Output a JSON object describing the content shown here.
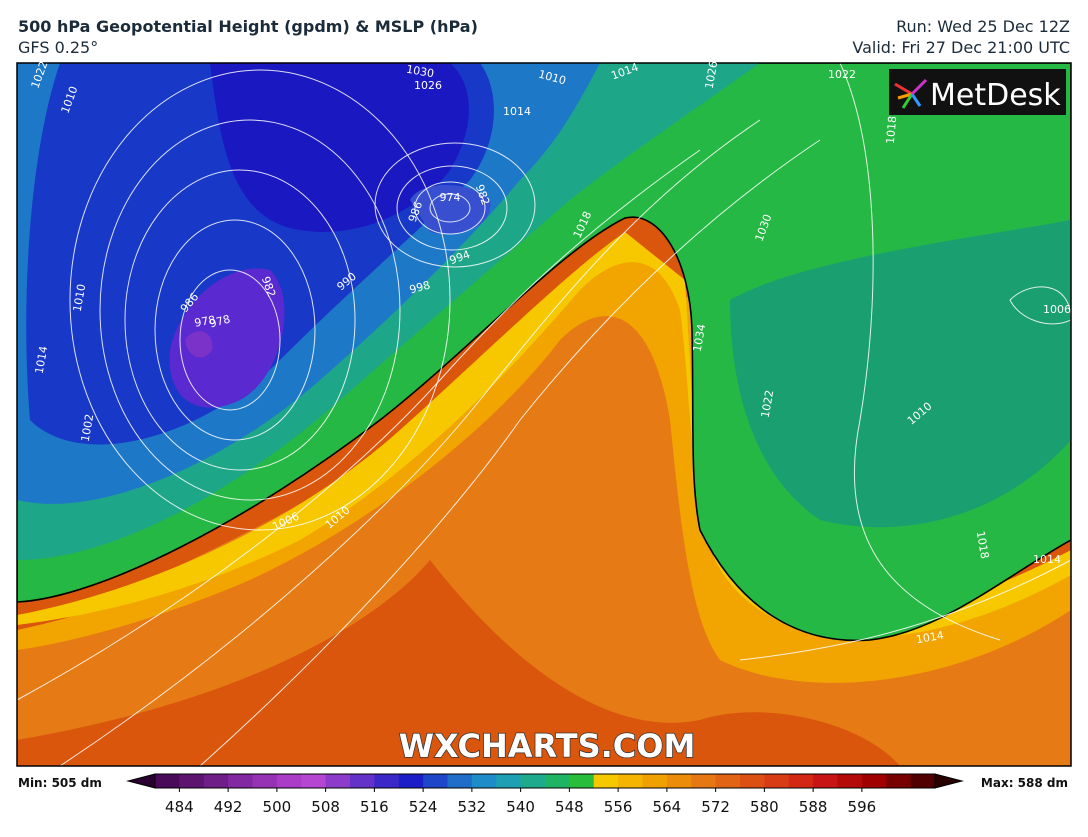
{
  "header": {
    "title": "500 hPa Geopotential Height (gpdm) & MSLP (hPa)",
    "subtitle": "GFS 0.25°",
    "run": "Run: Wed 25 Dec 12Z",
    "valid": "Valid: Fri 27 Dec 21:00 UTC"
  },
  "map": {
    "logo": "MetDesk",
    "watermark": "WXCHARTS.COM",
    "contour_labels": [
      "1022",
      "1010",
      "1030",
      "1026",
      "1010",
      "1014",
      "1026",
      "1022",
      "1018",
      "974",
      "982",
      "986",
      "978",
      "994",
      "990",
      "998",
      "986",
      "978",
      "982",
      "1018",
      "1010",
      "1014",
      "1002",
      "1006",
      "1010",
      "1014",
      "1006",
      "1010",
      "1022",
      "1018",
      "1014",
      "1014",
      "1030",
      "1034"
    ]
  },
  "colorbar": {
    "min_label": "Min: 505 dm",
    "max_label": "Max: 588 dm",
    "ticks": [
      484,
      492,
      500,
      508,
      516,
      524,
      532,
      540,
      548,
      556,
      564,
      572,
      580,
      588,
      596
    ]
  }
}
